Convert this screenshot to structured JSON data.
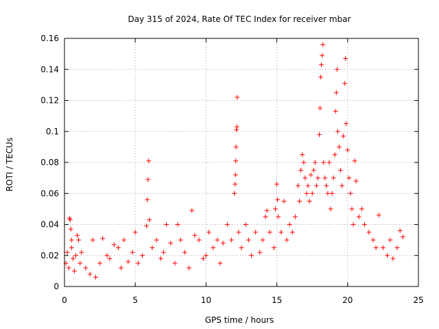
{
  "chart_data": {
    "type": "scatter",
    "title": "Day 315 of 2024, Rate Of TEC Index for receiver mbar",
    "xlabel": "GPS time / hours",
    "ylabel": "ROTI / TECUs",
    "xlim": [
      0,
      25
    ],
    "ylim": [
      0,
      0.16
    ],
    "xticks": [
      0,
      5,
      10,
      15,
      20,
      25
    ],
    "xtick_labels": [
      "0",
      "5",
      "10",
      "15",
      "20",
      "25"
    ],
    "yticks": [
      0,
      0.02,
      0.04,
      0.06,
      0.08,
      0.1,
      0.12,
      0.14,
      0.16
    ],
    "ytick_labels": [
      "0",
      "0.02",
      "0.04",
      "0.06",
      "0.08",
      "0.1",
      "0.12",
      "0.14",
      "0.16"
    ],
    "grid": true,
    "marker": "+",
    "color": "#ff0000",
    "series": [
      {
        "name": "ROTI",
        "points": [
          [
            0.1,
            0.015
          ],
          [
            0.2,
            0.022
          ],
          [
            0.3,
            0.012
          ],
          [
            0.35,
            0.044
          ],
          [
            0.4,
            0.043
          ],
          [
            0.45,
            0.037
          ],
          [
            0.5,
            0.03
          ],
          [
            0.5,
            0.025
          ],
          [
            0.6,
            0.018
          ],
          [
            0.7,
            0.01
          ],
          [
            0.8,
            0.02
          ],
          [
            0.9,
            0.033
          ],
          [
            1.0,
            0.03
          ],
          [
            1.1,
            0.015
          ],
          [
            1.2,
            0.022
          ],
          [
            1.5,
            0.012
          ],
          [
            1.8,
            0.008
          ],
          [
            2.0,
            0.03
          ],
          [
            2.2,
            0.006
          ],
          [
            2.5,
            0.015
          ],
          [
            2.7,
            0.031
          ],
          [
            3.0,
            0.02
          ],
          [
            3.2,
            0.018
          ],
          [
            3.5,
            0.027
          ],
          [
            3.8,
            0.025
          ],
          [
            4.0,
            0.012
          ],
          [
            4.2,
            0.03
          ],
          [
            4.5,
            0.016
          ],
          [
            4.8,
            0.022
          ],
          [
            5.0,
            0.035
          ],
          [
            5.2,
            0.015
          ],
          [
            5.5,
            0.02
          ],
          [
            5.8,
            0.039
          ],
          [
            5.85,
            0.056
          ],
          [
            5.9,
            0.069
          ],
          [
            5.95,
            0.081
          ],
          [
            6.0,
            0.043
          ],
          [
            6.2,
            0.025
          ],
          [
            6.5,
            0.03
          ],
          [
            6.8,
            0.018
          ],
          [
            7.0,
            0.022
          ],
          [
            7.2,
            0.04
          ],
          [
            7.5,
            0.028
          ],
          [
            7.8,
            0.015
          ],
          [
            8.0,
            0.04
          ],
          [
            8.2,
            0.03
          ],
          [
            8.5,
            0.022
          ],
          [
            8.8,
            0.012
          ],
          [
            9.0,
            0.049
          ],
          [
            9.2,
            0.033
          ],
          [
            9.5,
            0.03
          ],
          [
            9.8,
            0.018
          ],
          [
            10.0,
            0.02
          ],
          [
            10.2,
            0.035
          ],
          [
            10.5,
            0.025
          ],
          [
            10.8,
            0.03
          ],
          [
            11.0,
            0.015
          ],
          [
            11.2,
            0.028
          ],
          [
            11.5,
            0.04
          ],
          [
            11.8,
            0.03
          ],
          [
            12.0,
            0.06
          ],
          [
            12.05,
            0.066
          ],
          [
            12.08,
            0.072
          ],
          [
            12.1,
            0.081
          ],
          [
            12.12,
            0.09
          ],
          [
            12.15,
            0.101
          ],
          [
            12.18,
            0.103
          ],
          [
            12.2,
            0.122
          ],
          [
            12.3,
            0.035
          ],
          [
            12.5,
            0.025
          ],
          [
            12.8,
            0.04
          ],
          [
            13.0,
            0.03
          ],
          [
            13.2,
            0.02
          ],
          [
            13.5,
            0.035
          ],
          [
            13.8,
            0.022
          ],
          [
            14.0,
            0.03
          ],
          [
            14.2,
            0.045
          ],
          [
            14.3,
            0.049
          ],
          [
            14.5,
            0.035
          ],
          [
            14.8,
            0.025
          ],
          [
            14.9,
            0.05
          ],
          [
            15.0,
            0.066
          ],
          [
            15.05,
            0.056
          ],
          [
            15.1,
            0.045
          ],
          [
            15.3,
            0.035
          ],
          [
            15.5,
            0.055
          ],
          [
            15.7,
            0.03
          ],
          [
            15.9,
            0.04
          ],
          [
            16.1,
            0.035
          ],
          [
            16.3,
            0.045
          ],
          [
            16.5,
            0.065
          ],
          [
            16.6,
            0.055
          ],
          [
            16.7,
            0.075
          ],
          [
            16.8,
            0.085
          ],
          [
            16.9,
            0.08
          ],
          [
            17.0,
            0.07
          ],
          [
            17.1,
            0.06
          ],
          [
            17.2,
            0.065
          ],
          [
            17.3,
            0.055
          ],
          [
            17.4,
            0.072
          ],
          [
            17.5,
            0.06
          ],
          [
            17.6,
            0.075
          ],
          [
            17.7,
            0.08
          ],
          [
            17.8,
            0.065
          ],
          [
            17.9,
            0.07
          ],
          [
            18.0,
            0.098
          ],
          [
            18.05,
            0.115
          ],
          [
            18.1,
            0.135
          ],
          [
            18.15,
            0.143
          ],
          [
            18.2,
            0.149
          ],
          [
            18.25,
            0.156
          ],
          [
            18.3,
            0.08
          ],
          [
            18.4,
            0.07
          ],
          [
            18.5,
            0.065
          ],
          [
            18.6,
            0.06
          ],
          [
            18.7,
            0.08
          ],
          [
            18.8,
            0.05
          ],
          [
            18.9,
            0.06
          ],
          [
            19.0,
            0.07
          ],
          [
            19.1,
            0.085
          ],
          [
            19.15,
            0.113
          ],
          [
            19.2,
            0.125
          ],
          [
            19.25,
            0.14
          ],
          [
            19.3,
            0.1
          ],
          [
            19.4,
            0.09
          ],
          [
            19.5,
            0.075
          ],
          [
            19.6,
            0.065
          ],
          [
            19.7,
            0.097
          ],
          [
            19.8,
            0.131
          ],
          [
            19.85,
            0.147
          ],
          [
            19.9,
            0.105
          ],
          [
            20.0,
            0.088
          ],
          [
            20.1,
            0.07
          ],
          [
            20.2,
            0.06
          ],
          [
            20.3,
            0.05
          ],
          [
            20.4,
            0.04
          ],
          [
            20.5,
            0.081
          ],
          [
            20.6,
            0.068
          ],
          [
            20.8,
            0.045
          ],
          [
            21.0,
            0.05
          ],
          [
            21.2,
            0.04
          ],
          [
            21.5,
            0.035
          ],
          [
            21.8,
            0.03
          ],
          [
            22.0,
            0.025
          ],
          [
            22.2,
            0.046
          ],
          [
            22.5,
            0.025
          ],
          [
            22.8,
            0.02
          ],
          [
            23.0,
            0.03
          ],
          [
            23.2,
            0.018
          ],
          [
            23.5,
            0.025
          ],
          [
            23.7,
            0.036
          ],
          [
            23.9,
            0.032
          ]
        ]
      }
    ]
  }
}
